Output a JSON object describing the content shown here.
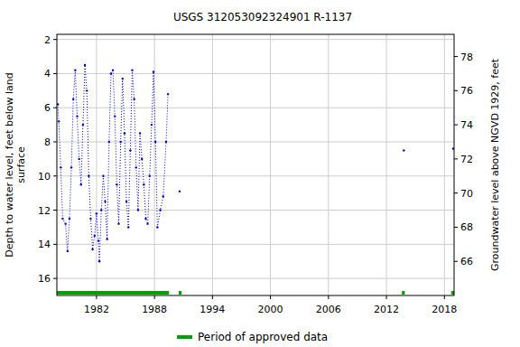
{
  "chart_data": {
    "type": "line",
    "title": "USGS 312053092324901 R-1137",
    "ylabel": [
      "Depth to water level, feet below land",
      "surface"
    ],
    "y2label": "Groundwater level above NGVD 1929, feet",
    "x": [
      1978.0,
      1978.1,
      1978.3,
      1978.5,
      1978.8,
      1979.0,
      1979.2,
      1979.4,
      1979.6,
      1979.8,
      1980.0,
      1980.2,
      1980.4,
      1980.6,
      1980.8,
      1981.0,
      1981.2,
      1981.4,
      1981.6,
      1981.8,
      1982.0,
      1982.2,
      1982.3,
      1982.5,
      1982.7,
      1982.9,
      1983.1,
      1983.3,
      1983.5,
      1983.7,
      1983.9,
      1984.1,
      1984.3,
      1984.5,
      1984.7,
      1984.9,
      1985.1,
      1985.3,
      1985.5,
      1985.7,
      1985.9,
      1986.1,
      1986.3,
      1986.5,
      1986.7,
      1986.9,
      1987.1,
      1987.3,
      1987.5,
      1987.7,
      1987.9,
      1988.1,
      1988.3,
      1988.6,
      1988.9,
      1989.2,
      1989.4,
      1990.0,
      1990.6,
      2000.0,
      2013.8,
      2016.0,
      2018.9
    ],
    "series": [
      {
        "name": "Depth to water level",
        "color": "#0000cc",
        "marker": "dot",
        "line_style": "dotted",
        "values": [
          5.8,
          6.8,
          9.5,
          12.5,
          12.8,
          14.4,
          12.5,
          9.5,
          5.5,
          3.8,
          6.5,
          9.0,
          10.5,
          7.0,
          3.5,
          5.0,
          10.0,
          12.5,
          14.3,
          13.5,
          12.2,
          13.8,
          15.0,
          12.0,
          10.0,
          11.5,
          13.7,
          8.0,
          4.0,
          3.8,
          6.5,
          10.5,
          12.8,
          8.0,
          4.3,
          7.5,
          11.5,
          13.0,
          8.5,
          3.8,
          5.5,
          9.5,
          12.0,
          7.5,
          9.0,
          10.5,
          12.5,
          12.8,
          10.0,
          7.0,
          3.9,
          8.0,
          13.0,
          12.0,
          11.2,
          8.0,
          5.2,
          null,
          10.9,
          null,
          8.5,
          null,
          8.4
        ]
      }
    ],
    "xlim": [
      1977.9,
      2019.0
    ],
    "xticks": [
      1982,
      1988,
      1994,
      2000,
      2006,
      2012,
      2018
    ],
    "ylim": [
      1.7,
      17.0
    ],
    "yticks": [
      2,
      4,
      6,
      8,
      10,
      12,
      14,
      16
    ],
    "y2lim": [
      79.3,
      64.0
    ],
    "y2ticks": [
      66,
      68,
      70,
      72,
      74,
      76,
      78
    ],
    "grid": true,
    "approved_periods": [
      [
        1977.9,
        1989.5
      ],
      [
        1990.5,
        1990.8
      ],
      [
        2013.6,
        2013.9
      ],
      [
        2018.7,
        2019.0
      ]
    ],
    "approved_color": "#00a000",
    "approved_label": "Period of approved data",
    "legend": "bottom"
  }
}
